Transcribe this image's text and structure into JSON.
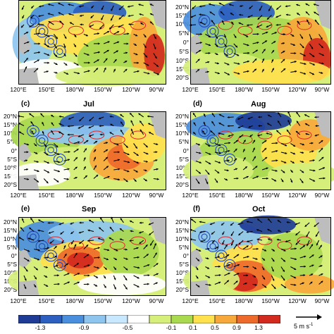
{
  "panels": [
    {
      "id": "a",
      "label": "",
      "month": ""
    },
    {
      "id": "b",
      "label": "",
      "month": ""
    },
    {
      "id": "c",
      "label": "(c)",
      "month": "Jul"
    },
    {
      "id": "d",
      "label": "(d)",
      "month": "Aug"
    },
    {
      "id": "e",
      "label": "(e)",
      "month": "Sep"
    },
    {
      "id": "f",
      "label": "(f)",
      "month": "Oct"
    }
  ],
  "lat_labels": [
    "20°N",
    "15°N",
    "10°N",
    "5°N",
    "0°",
    "5°S",
    "10°S",
    "15°S",
    "20°S"
  ],
  "lon_labels": [
    "120°E",
    "150°E",
    "180°W",
    "150°W",
    "120°W",
    "90°W"
  ],
  "colorbar": {
    "ticks": [
      "-1.3",
      "-0.9",
      "-0.5",
      "-0.1",
      "0.1",
      "0.5",
      "0.9",
      "1.3"
    ],
    "colors": [
      "#1e3c96",
      "#2d5fc0",
      "#4a8ede",
      "#8ec5ef",
      "#c8e8ff",
      "#ffffff",
      "#d6ef7a",
      "#a8d94f",
      "#ffe14d",
      "#f7a83a",
      "#ee6a2a",
      "#d22a1e"
    ]
  },
  "reference_vector": {
    "unit": "5 m s",
    "exponent": "-1"
  },
  "colors": {
    "land": "#bdbdbd",
    "contour_red": "#e0242a",
    "contour_blue": "#2448b8",
    "arrow": "#000000"
  }
}
